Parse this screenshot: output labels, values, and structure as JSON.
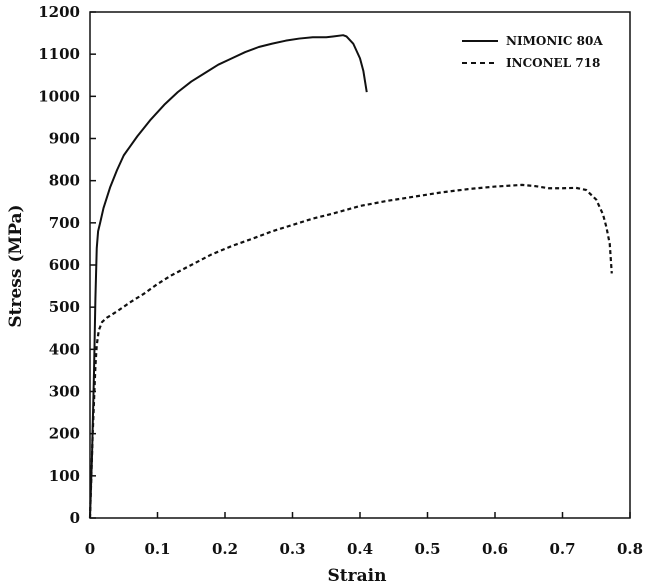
{
  "chart_data": {
    "type": "line",
    "title": "",
    "xlabel": "Strain",
    "ylabel": "Stress (MPa)",
    "xlim": [
      0,
      0.8
    ],
    "ylim": [
      0,
      1200
    ],
    "xticks": [
      0,
      0.1,
      0.2,
      0.3,
      0.4,
      0.5,
      0.6,
      0.7,
      0.8
    ],
    "xtick_labels": [
      "0",
      "0.1",
      "0.2",
      "0.3",
      "0.4",
      "0.5",
      "0.6",
      "0.7",
      "0.8"
    ],
    "yticks": [
      0,
      100,
      200,
      300,
      400,
      500,
      600,
      700,
      800,
      900,
      1000,
      1100,
      1200
    ],
    "ytick_labels": [
      "0",
      "100",
      "200",
      "300",
      "400",
      "500",
      "600",
      "700",
      "800",
      "900",
      "1000",
      "1100",
      "1200"
    ],
    "grid": false,
    "legend_position": "top-right",
    "series": [
      {
        "name": "NIMONIC 80A",
        "style": "solid",
        "color": "#111111",
        "points": [
          [
            0,
            0
          ],
          [
            0.003,
            150
          ],
          [
            0.006,
            350
          ],
          [
            0.008,
            520
          ],
          [
            0.01,
            640
          ],
          [
            0.012,
            680
          ],
          [
            0.015,
            700
          ],
          [
            0.02,
            735
          ],
          [
            0.03,
            785
          ],
          [
            0.04,
            825
          ],
          [
            0.05,
            860
          ],
          [
            0.07,
            905
          ],
          [
            0.09,
            945
          ],
          [
            0.11,
            980
          ],
          [
            0.13,
            1010
          ],
          [
            0.15,
            1035
          ],
          [
            0.17,
            1055
          ],
          [
            0.19,
            1075
          ],
          [
            0.21,
            1090
          ],
          [
            0.23,
            1105
          ],
          [
            0.25,
            1117
          ],
          [
            0.27,
            1125
          ],
          [
            0.29,
            1132
          ],
          [
            0.31,
            1137
          ],
          [
            0.33,
            1140
          ],
          [
            0.35,
            1140
          ],
          [
            0.36,
            1142
          ],
          [
            0.375,
            1145
          ],
          [
            0.38,
            1142
          ],
          [
            0.39,
            1125
          ],
          [
            0.4,
            1090
          ],
          [
            0.405,
            1060
          ],
          [
            0.41,
            1010
          ]
        ]
      },
      {
        "name": "INCONEL 718",
        "style": "dashed",
        "color": "#111111",
        "points": [
          [
            0,
            0
          ],
          [
            0.002,
            100
          ],
          [
            0.004,
            200
          ],
          [
            0.006,
            280
          ],
          [
            0.008,
            360
          ],
          [
            0.01,
            410
          ],
          [
            0.013,
            445
          ],
          [
            0.018,
            465
          ],
          [
            0.025,
            475
          ],
          [
            0.04,
            490
          ],
          [
            0.06,
            512
          ],
          [
            0.08,
            532
          ],
          [
            0.1,
            555
          ],
          [
            0.12,
            575
          ],
          [
            0.15,
            600
          ],
          [
            0.18,
            625
          ],
          [
            0.21,
            645
          ],
          [
            0.24,
            662
          ],
          [
            0.27,
            680
          ],
          [
            0.3,
            695
          ],
          [
            0.33,
            710
          ],
          [
            0.36,
            722
          ],
          [
            0.4,
            740
          ],
          [
            0.44,
            752
          ],
          [
            0.48,
            762
          ],
          [
            0.52,
            772
          ],
          [
            0.56,
            780
          ],
          [
            0.6,
            786
          ],
          [
            0.64,
            790
          ],
          [
            0.66,
            787
          ],
          [
            0.68,
            782
          ],
          [
            0.7,
            782
          ],
          [
            0.72,
            783
          ],
          [
            0.735,
            778
          ],
          [
            0.75,
            755
          ],
          [
            0.76,
            720
          ],
          [
            0.765,
            690
          ],
          [
            0.77,
            650
          ],
          [
            0.773,
            580
          ]
        ]
      }
    ]
  }
}
